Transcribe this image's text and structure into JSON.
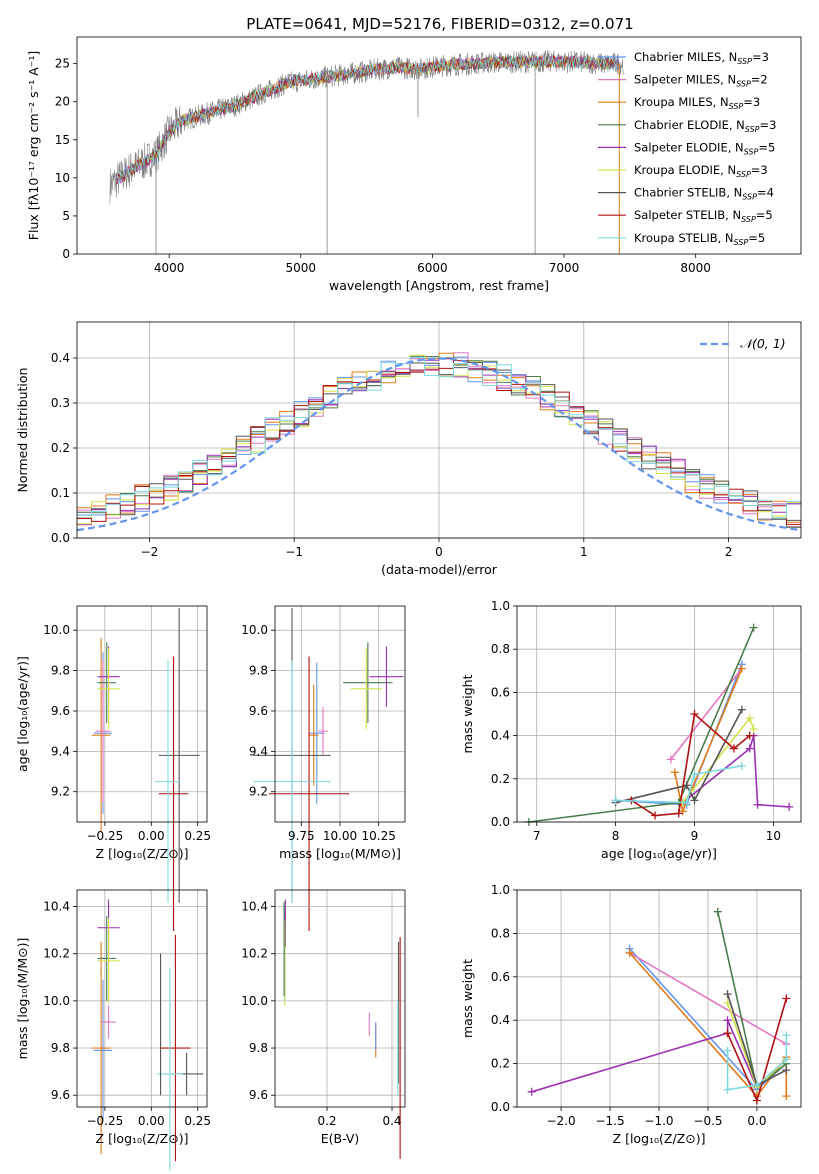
{
  "colors": {
    "Chabrier MILES": "#6495ed",
    "Salpeter MILES": "#e377c2",
    "Kroupa MILES": "#e07b1a",
    "Chabrier ELODIE": "#4a7d4a",
    "Salpeter ELODIE": "#9b30b0",
    "Kroupa ELODIE": "#d4e04a",
    "Chabrier STELIB": "#555555",
    "Salpeter STELIB": "#b01010",
    "Kroupa STELIB": "#7fd8e0"
  },
  "chart_data": [
    {
      "type": "line",
      "title": "PLATE=0641, MJD=52176, FIBERID=0312, z=0.071",
      "xlabel": "wavelength [Angstrom, rest frame]",
      "ylabel": "Flux [fλ10⁻¹⁷ erg cm⁻² s⁻¹ A⁻¹]",
      "xlim": [
        3300,
        8800
      ],
      "ylim": [
        0,
        28.5
      ],
      "xticks": [
        "4000",
        "5000",
        "6000",
        "7000",
        "8000"
      ],
      "yticks": [
        "0",
        "5",
        "10",
        "15",
        "20",
        "25"
      ],
      "legend_position": "top-right",
      "legend": [
        {
          "name": "Chabrier MILES",
          "nssp": "3"
        },
        {
          "name": "Salpeter MILES",
          "nssp": "2"
        },
        {
          "name": "Kroupa MILES",
          "nssp": "3"
        },
        {
          "name": "Chabrier ELODIE",
          "nssp": "3"
        },
        {
          "name": "Salpeter ELODIE",
          "nssp": "5"
        },
        {
          "name": "Kroupa ELODIE",
          "nssp": "3"
        },
        {
          "name": "Chabrier STELIB",
          "nssp": "4"
        },
        {
          "name": "Salpeter STELIB",
          "nssp": "5"
        },
        {
          "name": "Kroupa STELIB",
          "nssp": "5"
        }
      ],
      "continuum": [
        [
          3550,
          9
        ],
        [
          3700,
          11
        ],
        [
          3900,
          13
        ],
        [
          4000,
          16
        ],
        [
          4100,
          17.5
        ],
        [
          4300,
          18.5
        ],
        [
          4500,
          19.5
        ],
        [
          4700,
          21
        ],
        [
          4900,
          22.5
        ],
        [
          5100,
          23
        ],
        [
          5300,
          23.5
        ],
        [
          5500,
          24
        ],
        [
          5700,
          24.5
        ],
        [
          5900,
          24.3
        ],
        [
          6100,
          24.8
        ],
        [
          6300,
          25
        ],
        [
          6500,
          25.2
        ],
        [
          6700,
          25.2
        ],
        [
          6900,
          25.3
        ],
        [
          7100,
          25.2
        ],
        [
          7300,
          25
        ],
        [
          7450,
          25
        ]
      ]
    },
    {
      "type": "histogram",
      "xlabel": "(data-model)/error",
      "ylabel": "Normed distribution",
      "xlim": [
        -2.5,
        2.5
      ],
      "ylim": [
        0,
        0.48
      ],
      "xticks": [
        "−2",
        "−1",
        "0",
        "1",
        "2"
      ],
      "yticks": [
        "0.0",
        "0.1",
        "0.2",
        "0.3",
        "0.4"
      ],
      "bin_width": 0.1,
      "legend_label": "𝒩(0, 1)",
      "legend_position": "top-right"
    },
    {
      "type": "errorbar",
      "xlabel": "Z [log₁₀(Z/Z⊙)]",
      "ylabel": "age  [log₁₀(age/yr)]",
      "xlim": [
        -0.4,
        0.3
      ],
      "ylim": [
        9.05,
        10.12
      ],
      "xticks": [
        "−0.25",
        "0.00",
        "0.25"
      ],
      "yticks": [
        "9.2",
        "9.4",
        "9.6",
        "9.8",
        "10.0"
      ],
      "points": [
        {
          "series": "Chabrier MILES",
          "x": -0.26,
          "xerr": 0.05,
          "y": 9.49,
          "yerr": 0.4
        },
        {
          "series": "Kroupa MILES",
          "x": -0.27,
          "xerr": 0.05,
          "y": 9.48,
          "yerr": 0.48
        },
        {
          "series": "Salpeter MILES",
          "x": -0.26,
          "xerr": 0.04,
          "y": 9.5,
          "yerr": 0.35
        },
        {
          "series": "Chabrier ELODIE",
          "x": -0.24,
          "xerr": 0.05,
          "y": 9.74,
          "yerr": 0.2
        },
        {
          "series": "Salpeter ELODIE",
          "x": -0.23,
          "xerr": 0.06,
          "y": 9.77,
          "yerr": 0.15
        },
        {
          "series": "Kroupa ELODIE",
          "x": -0.23,
          "xerr": 0.06,
          "y": 9.71,
          "yerr": 0.2
        },
        {
          "series": "Chabrier STELIB",
          "x": 0.15,
          "xerr": 0.11,
          "y": 9.38,
          "yerr": 0.73
        },
        {
          "series": "Salpeter STELIB",
          "x": 0.12,
          "xerr": 0.08,
          "y": 9.19,
          "yerr": 0.68
        },
        {
          "series": "Kroupa STELIB",
          "x": 0.09,
          "xerr": 0.07,
          "y": 9.25,
          "yerr": 0.6
        }
      ]
    },
    {
      "type": "errorbar",
      "xlabel": "mass [log₁₀(M/M⊙)]",
      "ylabel": "",
      "xlim": [
        9.58,
        10.42
      ],
      "ylim": [
        9.05,
        10.12
      ],
      "xticks": [
        "9.75",
        "10.00",
        "10.25"
      ],
      "yticks": [
        "9.2",
        "9.4",
        "9.6",
        "9.8",
        "10.0"
      ],
      "points": [
        {
          "series": "Chabrier MILES",
          "x": 9.85,
          "xerr": 0.05,
          "y": 9.49,
          "yerr": 0.35
        },
        {
          "series": "Salpeter MILES",
          "x": 9.89,
          "xerr": 0.03,
          "y": 9.5,
          "yerr": 0.12
        },
        {
          "series": "Kroupa MILES",
          "x": 9.83,
          "xerr": 0.03,
          "y": 9.48,
          "yerr": 0.25
        },
        {
          "series": "Chabrier ELODIE",
          "x": 10.18,
          "xerr": 0.16,
          "y": 9.74,
          "yerr": 0.2
        },
        {
          "series": "Salpeter ELODIE",
          "x": 10.3,
          "xerr": 0.11,
          "y": 9.77,
          "yerr": 0.15
        },
        {
          "series": "Kroupa ELODIE",
          "x": 10.17,
          "xerr": 0.1,
          "y": 9.71,
          "yerr": 0.2
        },
        {
          "series": "Chabrier STELIB",
          "x": 9.69,
          "xerr": 0.25,
          "y": 9.38,
          "yerr": 0.73
        },
        {
          "series": "Salpeter STELIB",
          "x": 9.8,
          "xerr": 0.26,
          "y": 9.19,
          "yerr": 0.68
        },
        {
          "series": "Kroupa STELIB",
          "x": 9.69,
          "xerr": 0.25,
          "y": 9.25,
          "yerr": 0.6
        }
      ]
    },
    {
      "type": "line",
      "xlabel": "age  [log₁₀(age/yr)]",
      "ylabel": "mass weight",
      "xlim": [
        6.75,
        10.35
      ],
      "ylim": [
        0,
        1.0
      ],
      "xticks": [
        "7",
        "8",
        "9",
        "10"
      ],
      "yticks": [
        "0.0",
        "0.2",
        "0.4",
        "0.6",
        "0.8",
        "1.0"
      ],
      "series": [
        {
          "name": "Chabrier MILES",
          "x": [
            8.0,
            8.9,
            9.6
          ],
          "y": [
            0.1,
            0.08,
            0.73
          ]
        },
        {
          "name": "Salpeter MILES",
          "x": [
            8.7,
            9.6
          ],
          "y": [
            0.29,
            0.71
          ]
        },
        {
          "name": "Kroupa MILES",
          "x": [
            8.75,
            8.85,
            9.6
          ],
          "y": [
            0.23,
            0.05,
            0.71
          ]
        },
        {
          "name": "Chabrier ELODIE",
          "x": [
            6.9,
            8.8,
            9.75
          ],
          "y": [
            0.0,
            0.09,
            0.9
          ]
        },
        {
          "name": "Salpeter ELODIE",
          "x": [
            8.85,
            9.7,
            9.75,
            9.8,
            10.2
          ],
          "y": [
            0.09,
            0.34,
            0.4,
            0.08,
            0.07
          ]
        },
        {
          "name": "Kroupa ELODIE",
          "x": [
            8.85,
            9.7,
            9.75
          ],
          "y": [
            0.09,
            0.48,
            0.43
          ]
        },
        {
          "name": "Chabrier STELIB",
          "x": [
            8.0,
            8.9,
            9.0,
            9.6
          ],
          "y": [
            0.09,
            0.17,
            0.1,
            0.52
          ]
        },
        {
          "name": "Salpeter STELIB",
          "x": [
            8.2,
            8.5,
            8.8,
            9.0,
            9.5,
            9.7
          ],
          "y": [
            0.1,
            0.03,
            0.04,
            0.5,
            0.34,
            0.4
          ]
        },
        {
          "name": "Kroupa STELIB",
          "x": [
            8.0,
            8.9,
            9.0,
            9.6
          ],
          "y": [
            0.1,
            0.09,
            0.22,
            0.26
          ]
        }
      ]
    },
    {
      "type": "errorbar",
      "xlabel": "Z [log₁₀(Z/Z⊙)]",
      "ylabel": "mass [log₁₀(M/M⊙)]",
      "xlim": [
        -0.4,
        0.3
      ],
      "ylim": [
        9.55,
        10.47
      ],
      "xticks": [
        "−0.25",
        "0.00",
        "0.25"
      ],
      "yticks": [
        "9.6",
        "9.8",
        "10.0",
        "10.2",
        "10.4"
      ],
      "points": [
        {
          "series": "Chabrier MILES",
          "x": -0.26,
          "xerr": 0.05,
          "y": 9.79,
          "yerr": 0.3
        },
        {
          "series": "Kroupa MILES",
          "x": -0.27,
          "xerr": 0.05,
          "y": 9.8,
          "yerr": 0.45
        },
        {
          "series": "Salpeter MILES",
          "x": -0.23,
          "xerr": 0.04,
          "y": 9.91,
          "yerr": 0.07
        },
        {
          "series": "Chabrier ELODIE",
          "x": -0.24,
          "xerr": 0.05,
          "y": 10.18,
          "yerr": 0.18
        },
        {
          "series": "Salpeter ELODIE",
          "x": -0.23,
          "xerr": 0.06,
          "y": 10.31,
          "yerr": 0.12
        },
        {
          "series": "Kroupa ELODIE",
          "x": -0.23,
          "xerr": 0.06,
          "y": 10.17,
          "yerr": 0.18
        },
        {
          "series": "Chabrier STELIB",
          "x": 0.19,
          "xerr": 0.09,
          "y": 9.69,
          "yerr": 0.09
        },
        {
          "series": "Salpeter STELIB",
          "x": 0.13,
          "xerr": 0.08,
          "y": 9.8,
          "yerr": 0.48
        },
        {
          "series": "Kroupa STELIB",
          "x": 0.1,
          "xerr": 0.07,
          "y": 9.69,
          "yerr": 0.45
        },
        {
          "series": "Chabrier STELIB",
          "x": 0.05,
          "xerr": 0.0,
          "y": 9.9,
          "yerr": 0.3
        }
      ]
    },
    {
      "type": "errorbar",
      "xlabel": "E(B-V)",
      "ylabel": "",
      "xlim": [
        0.04,
        0.44
      ],
      "ylim": [
        9.55,
        10.47
      ],
      "xticks": [
        "0.2",
        "0.4"
      ],
      "yticks": [
        "9.6",
        "9.8",
        "10.0",
        "10.2",
        "10.4"
      ],
      "points": [
        {
          "series": "Chabrier MILES",
          "x": 0.07,
          "xerr": 0,
          "y": 10.2,
          "yerr": 0.2
        },
        {
          "series": "Salpeter ELODIE",
          "x": 0.072,
          "xerr": 0,
          "y": 10.33,
          "yerr": 0.1
        },
        {
          "series": "Kroupa ELODIE",
          "x": 0.07,
          "xerr": 0,
          "y": 10.16,
          "yerr": 0.18
        },
        {
          "series": "Chabrier ELODIE",
          "x": 0.068,
          "xerr": 0,
          "y": 10.22,
          "yerr": 0.2
        },
        {
          "series": "Salpeter MILES",
          "x": 0.33,
          "xerr": 0,
          "y": 9.9,
          "yerr": 0.05
        },
        {
          "series": "Kroupa MILES",
          "x": 0.35,
          "xerr": 0,
          "y": 9.83,
          "yerr": 0.07
        },
        {
          "series": "Chabrier MILES",
          "x": 0.35,
          "xerr": 0,
          "y": 9.85,
          "yerr": 0.06
        },
        {
          "series": "Chabrier STELIB",
          "x": 0.42,
          "xerr": 0,
          "y": 9.95,
          "yerr": 0.3
        },
        {
          "series": "Salpeter STELIB",
          "x": 0.425,
          "xerr": 0,
          "y": 9.8,
          "yerr": 0.47
        },
        {
          "series": "Kroupa STELIB",
          "x": 0.418,
          "xerr": 0,
          "y": 9.8,
          "yerr": 0.2
        }
      ]
    },
    {
      "type": "line",
      "xlabel": "Z [log₁₀(Z/Z⊙)]",
      "ylabel": "mass weight",
      "xlim": [
        -2.45,
        0.45
      ],
      "ylim": [
        0,
        1.0
      ],
      "xticks": [
        "−2.0",
        "−1.5",
        "−1.0",
        "−0.5",
        "0.0"
      ],
      "yticks": [
        "0.0",
        "0.2",
        "0.4",
        "0.6",
        "0.8",
        "1.0"
      ],
      "series": [
        {
          "name": "Chabrier MILES",
          "x": [
            -1.3,
            0.0,
            0.3
          ],
          "y": [
            0.73,
            0.08,
            0.2
          ]
        },
        {
          "name": "Salpeter MILES",
          "x": [
            -1.3,
            0.3
          ],
          "y": [
            0.71,
            0.29
          ]
        },
        {
          "name": "Kroupa MILES",
          "x": [
            -1.3,
            0.0,
            0.3,
            0.3
          ],
          "y": [
            0.71,
            0.05,
            0.23,
            0.05
          ]
        },
        {
          "name": "Chabrier ELODIE",
          "x": [
            -0.4,
            0.0,
            0.3
          ],
          "y": [
            0.9,
            0.09,
            0.2
          ]
        },
        {
          "name": "Salpeter ELODIE",
          "x": [
            -2.3,
            -0.3,
            -0.3,
            0.0
          ],
          "y": [
            0.07,
            0.34,
            0.4,
            0.09
          ]
        },
        {
          "name": "Kroupa ELODIE",
          "x": [
            -0.3,
            0.0,
            0.3
          ],
          "y": [
            0.48,
            0.09,
            0.22
          ]
        },
        {
          "name": "Chabrier STELIB",
          "x": [
            -0.3,
            0.0,
            0.3
          ],
          "y": [
            0.52,
            0.1,
            0.17
          ]
        },
        {
          "name": "Salpeter STELIB",
          "x": [
            -0.3,
            0.0,
            0.3
          ],
          "y": [
            0.34,
            0.03,
            0.5
          ]
        },
        {
          "name": "Kroupa STELIB",
          "x": [
            -0.3,
            -0.3,
            0.0,
            0.3,
            0.3
          ],
          "y": [
            0.26,
            0.08,
            0.1,
            0.22,
            0.33
          ]
        }
      ]
    }
  ]
}
